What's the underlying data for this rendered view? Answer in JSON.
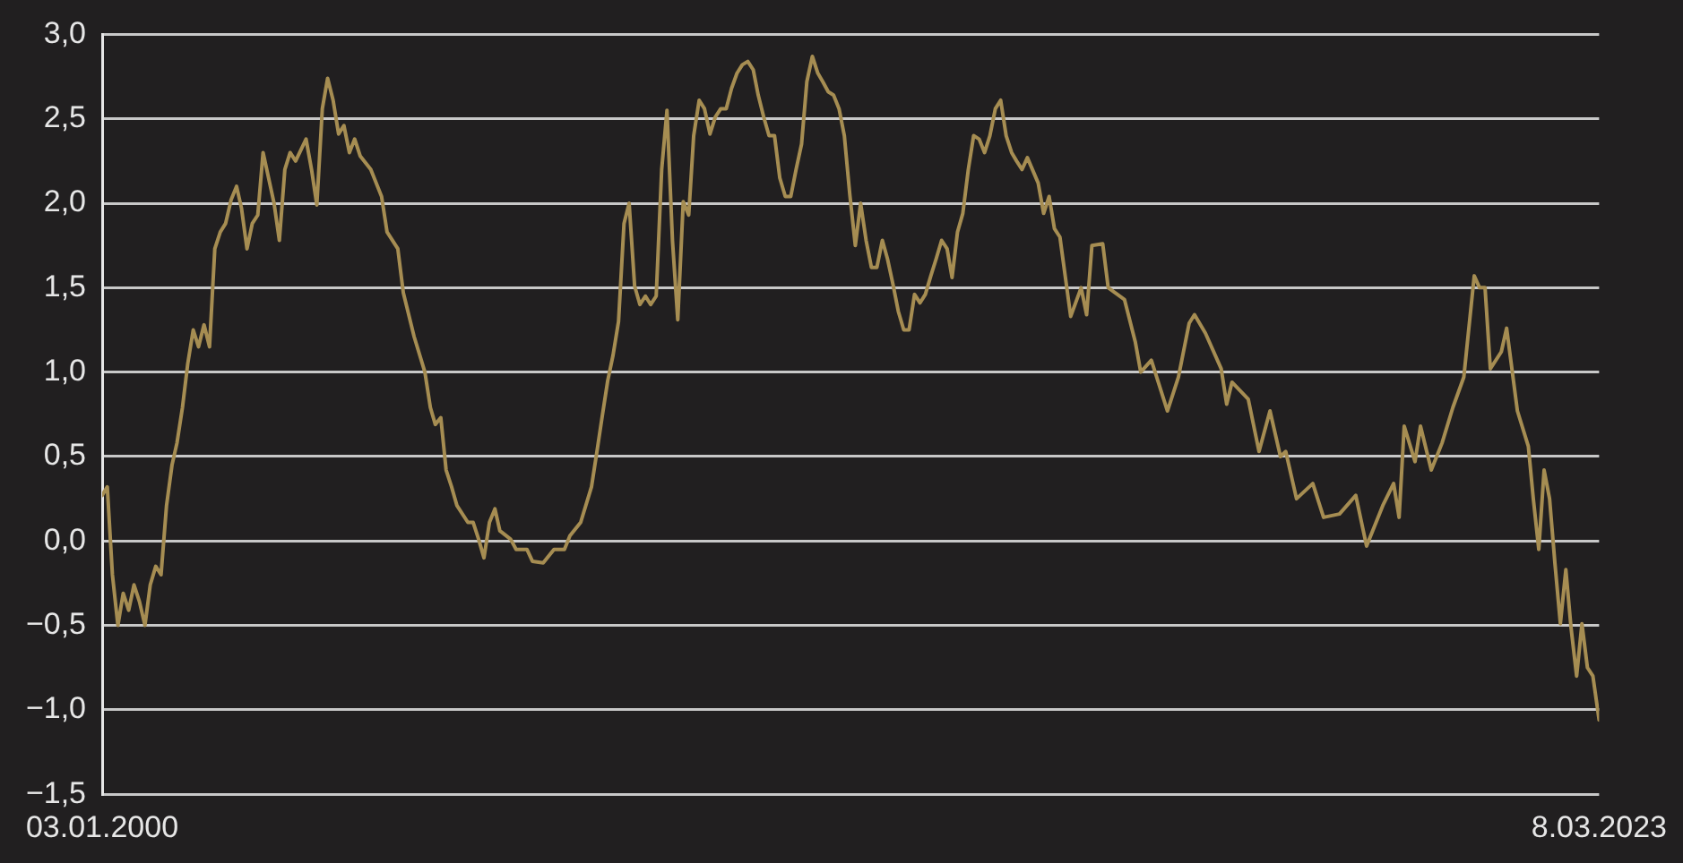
{
  "chart_data": {
    "type": "line",
    "x": [
      "2000-01-03",
      "2000-02",
      "2000-03",
      "2000-04",
      "2000-05",
      "2000-06",
      "2000-07",
      "2000-08",
      "2000-09",
      "2000-10",
      "2000-11",
      "2000-12",
      "2001-01",
      "2001-02",
      "2001-03",
      "2001-04",
      "2001-05",
      "2001-06",
      "2001-07",
      "2001-08",
      "2001-09",
      "2001-10",
      "2001-11",
      "2001-12",
      "2002-01",
      "2002-02",
      "2002-03",
      "2002-04",
      "2002-05",
      "2002-06",
      "2002-07",
      "2002-09",
      "2002-10",
      "2002-11",
      "2002-12",
      "2003-01",
      "2003-03",
      "2003-04",
      "2003-05",
      "2003-06",
      "2003-07",
      "2003-08",
      "2003-09",
      "2003-10",
      "2003-11",
      "2003-12",
      "2004-01",
      "2004-03",
      "2004-05",
      "2004-06",
      "2004-08",
      "2004-09",
      "2004-11",
      "2005-01",
      "2005-02",
      "2005-03",
      "2005-04",
      "2005-05",
      "2005-06",
      "2005-07",
      "2005-09",
      "2005-10",
      "2005-11",
      "2005-12",
      "2006-01",
      "2006-02",
      "2006-03",
      "2006-05",
      "2006-06",
      "2006-08",
      "2006-09",
      "2006-11",
      "2007-01",
      "2007-03",
      "2007-04",
      "2007-06",
      "2007-08",
      "2007-09",
      "2007-10",
      "2007-11",
      "2007-12",
      "2008-01",
      "2008-02",
      "2008-03",
      "2008-04",
      "2008-05",
      "2008-06",
      "2008-07",
      "2008-08",
      "2008-09",
      "2008-10",
      "2008-11",
      "2008-12",
      "2009-01",
      "2009-02",
      "2009-03",
      "2009-04",
      "2009-05",
      "2009-06",
      "2009-07",
      "2009-08",
      "2009-09",
      "2009-10",
      "2009-11",
      "2009-12",
      "2010-01",
      "2010-02",
      "2010-03",
      "2010-04",
      "2010-05",
      "2010-06",
      "2010-07",
      "2010-08",
      "2010-09",
      "2010-10",
      "2010-11",
      "2010-12",
      "2011-01",
      "2011-02",
      "2011-03",
      "2011-04",
      "2011-05",
      "2011-06",
      "2011-07",
      "2011-08",
      "2011-09",
      "2011-10",
      "2011-11",
      "2011-12",
      "2012-01",
      "2012-02",
      "2012-03",
      "2012-04",
      "2012-05",
      "2012-06",
      "2012-07",
      "2012-08",
      "2012-09",
      "2012-10",
      "2012-11",
      "2012-12",
      "2013-01",
      "2013-02",
      "2013-03",
      "2013-04",
      "2013-05",
      "2013-06",
      "2013-07",
      "2013-08",
      "2013-09",
      "2013-10",
      "2013-11",
      "2013-12",
      "2014-01",
      "2014-02",
      "2014-03",
      "2014-04",
      "2014-05",
      "2014-07",
      "2014-08",
      "2014-09",
      "2014-10",
      "2014-11",
      "2015-01",
      "2015-03",
      "2015-04",
      "2015-05",
      "2015-07",
      "2015-08",
      "2015-11",
      "2016-01",
      "2016-02",
      "2016-04",
      "2016-07",
      "2016-09",
      "2016-11",
      "2016-12",
      "2017-02",
      "2017-05",
      "2017-06",
      "2017-07",
      "2017-10",
      "2017-12",
      "2018-02",
      "2018-04",
      "2018-05",
      "2018-07",
      "2018-10",
      "2018-12",
      "2019-03",
      "2019-06",
      "2019-08",
      "2019-11",
      "2020-01",
      "2020-02",
      "2020-03",
      "2020-05",
      "2020-06",
      "2020-08",
      "2020-10",
      "2020-12",
      "2021-02",
      "2021-04",
      "2021-05",
      "2021-06",
      "2021-07",
      "2021-09",
      "2021-10",
      "2021-12",
      "2022-02",
      "2022-03",
      "2022-04",
      "2022-05",
      "2022-06",
      "2022-07",
      "2022-08",
      "2022-09",
      "2022-10",
      "2022-11",
      "2022-12",
      "2023-01",
      "2023-02",
      "2023-03-08"
    ],
    "series": [
      {
        "color": "#a68d52",
        "values": [
          0.27,
          0.32,
          -0.2,
          -0.5,
          -0.31,
          -0.41,
          -0.26,
          -0.36,
          -0.5,
          -0.26,
          -0.15,
          -0.2,
          0.21,
          0.45,
          0.58,
          0.79,
          1.05,
          1.25,
          1.15,
          1.28,
          1.15,
          1.73,
          1.83,
          1.88,
          2.02,
          2.1,
          1.97,
          1.73,
          1.88,
          1.93,
          2.3,
          2.0,
          1.78,
          2.2,
          2.3,
          2.25,
          2.38,
          2.2,
          1.99,
          2.56,
          2.74,
          2.61,
          2.41,
          2.46,
          2.3,
          2.38,
          2.28,
          2.2,
          2.04,
          1.83,
          1.73,
          1.47,
          1.21,
          1.0,
          0.79,
          0.69,
          0.73,
          0.42,
          0.32,
          0.21,
          0.11,
          0.11,
          0.01,
          -0.1,
          0.11,
          0.19,
          0.06,
          0.01,
          -0.05,
          -0.05,
          -0.12,
          -0.13,
          -0.05,
          -0.05,
          0.03,
          0.11,
          0.32,
          0.53,
          0.74,
          0.95,
          1.1,
          1.3,
          1.88,
          2.0,
          1.51,
          1.4,
          1.45,
          1.4,
          1.45,
          2.2,
          2.55,
          1.78,
          1.31,
          2.01,
          1.93,
          2.4,
          2.61,
          2.56,
          2.41,
          2.51,
          2.56,
          2.56,
          2.68,
          2.77,
          2.82,
          2.84,
          2.79,
          2.64,
          2.51,
          2.4,
          2.4,
          2.15,
          2.04,
          2.04,
          2.2,
          2.35,
          2.72,
          2.87,
          2.77,
          2.72,
          2.66,
          2.64,
          2.56,
          2.4,
          2.05,
          1.75,
          2.0,
          1.78,
          1.62,
          1.62,
          1.78,
          1.67,
          1.52,
          1.36,
          1.25,
          1.25,
          1.46,
          1.41,
          1.46,
          1.57,
          1.67,
          1.78,
          1.73,
          1.56,
          1.83,
          1.94,
          2.2,
          2.4,
          2.38,
          2.3,
          2.4,
          2.56,
          2.61,
          2.4,
          2.3,
          2.25,
          2.2,
          2.27,
          2.12,
          1.94,
          2.04,
          1.85,
          1.8,
          1.33,
          1.5,
          1.34,
          1.75,
          1.76,
          1.5,
          1.43,
          1.18,
          1.0,
          1.07,
          0.77,
          0.97,
          1.29,
          1.34,
          1.23,
          1.02,
          0.81,
          0.94,
          0.84,
          0.53,
          0.77,
          0.5,
          0.53,
          0.25,
          0.34,
          0.14,
          0.16,
          0.27,
          -0.03,
          0.21,
          0.34,
          0.14,
          0.68,
          0.47,
          0.68,
          0.42,
          0.58,
          0.79,
          0.97,
          1.57,
          1.5,
          1.5,
          1.02,
          1.12,
          1.26,
          0.77,
          0.56,
          0.25,
          -0.05,
          0.42,
          0.25,
          -0.13,
          -0.49,
          -0.17,
          -0.52,
          -0.8,
          -0.49,
          -0.75,
          -0.8,
          -1.06
        ]
      }
    ],
    "xlim": [
      "2000-01-03",
      "2023-03-08"
    ],
    "xticks": [
      {
        "value": "2000-01-03",
        "label": "03.01.2000"
      },
      {
        "value": "2023-03-08",
        "label": "8.03.2023"
      }
    ],
    "ylim": [
      -1.5,
      3
    ],
    "yticks": [
      {
        "value": -1.5,
        "label": "−1,5"
      },
      {
        "value": -1,
        "label": "−1,0"
      },
      {
        "value": -0.5,
        "label": "−0,5"
      },
      {
        "value": 0,
        "label": "0,0"
      },
      {
        "value": 0.5,
        "label": "0,5"
      },
      {
        "value": 1,
        "label": "1,0"
      },
      {
        "value": 1.5,
        "label": "1,5"
      },
      {
        "value": 2,
        "label": "2,0"
      },
      {
        "value": 2.5,
        "label": "2,5"
      },
      {
        "value": 3,
        "label": "3,0"
      }
    ],
    "grid": "y",
    "marker": "none",
    "line_style": "solid"
  }
}
